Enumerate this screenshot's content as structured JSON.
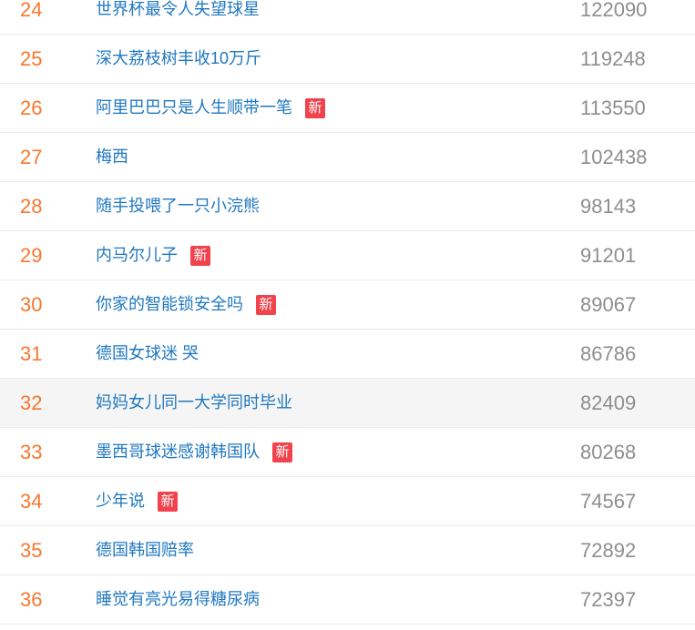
{
  "page": {
    "badge_label": "新",
    "colors": {
      "rank": "#f8772e",
      "title_link": "#2078c0",
      "count": "#8e8e8e",
      "badge_bg": "#f1434e",
      "badge_text": "#ffffff",
      "divider": "#e8eaed",
      "highlight_bg": "#f5f5f5"
    },
    "items": [
      {
        "rank": "24",
        "title": "世界杯最令人失望球星",
        "count": "122090",
        "is_new": false,
        "highlighted": false
      },
      {
        "rank": "25",
        "title": "深大荔枝树丰收10万斤",
        "count": "119248",
        "is_new": false,
        "highlighted": false
      },
      {
        "rank": "26",
        "title": "阿里巴巴只是人生顺带一笔",
        "count": "113550",
        "is_new": true,
        "highlighted": false
      },
      {
        "rank": "27",
        "title": "梅西",
        "count": "102438",
        "is_new": false,
        "highlighted": false
      },
      {
        "rank": "28",
        "title": "随手投喂了一只小浣熊",
        "count": "98143",
        "is_new": false,
        "highlighted": false
      },
      {
        "rank": "29",
        "title": "内马尔儿子",
        "count": "91201",
        "is_new": true,
        "highlighted": false
      },
      {
        "rank": "30",
        "title": "你家的智能锁安全吗",
        "count": "89067",
        "is_new": true,
        "highlighted": false
      },
      {
        "rank": "31",
        "title": "德国女球迷 哭",
        "count": "86786",
        "is_new": false,
        "highlighted": false
      },
      {
        "rank": "32",
        "title": "妈妈女儿同一大学同时毕业",
        "count": "82409",
        "is_new": false,
        "highlighted": true
      },
      {
        "rank": "33",
        "title": "墨西哥球迷感谢韩国队",
        "count": "80268",
        "is_new": true,
        "highlighted": false
      },
      {
        "rank": "34",
        "title": "少年说",
        "count": "74567",
        "is_new": true,
        "highlighted": false
      },
      {
        "rank": "35",
        "title": "德国韩国赔率",
        "count": "72892",
        "is_new": false,
        "highlighted": false
      },
      {
        "rank": "36",
        "title": "睡觉有亮光易得糖尿病",
        "count": "72397",
        "is_new": false,
        "highlighted": false
      }
    ]
  }
}
